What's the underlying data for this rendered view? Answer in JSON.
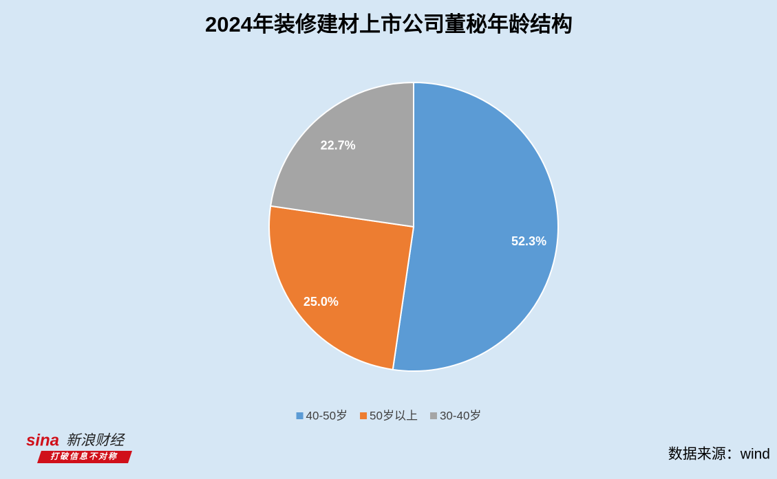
{
  "chart_data": {
    "type": "pie",
    "title": "2024年装修建材上市公司董秘年龄结构",
    "categories": [
      "40-50岁",
      "50岁以上",
      "30-40岁"
    ],
    "values": [
      52.3,
      25.0,
      22.7
    ],
    "value_labels": [
      "52.3%",
      "25.0%",
      "22.7%"
    ],
    "colors": [
      "#5b9bd5",
      "#ed7d31",
      "#a5a5a5"
    ],
    "legend": "bottom",
    "source": "数据来源：wind"
  },
  "logo": {
    "brand": "sina",
    "name": "新浪财经",
    "slogan": "打破信息不对称"
  }
}
